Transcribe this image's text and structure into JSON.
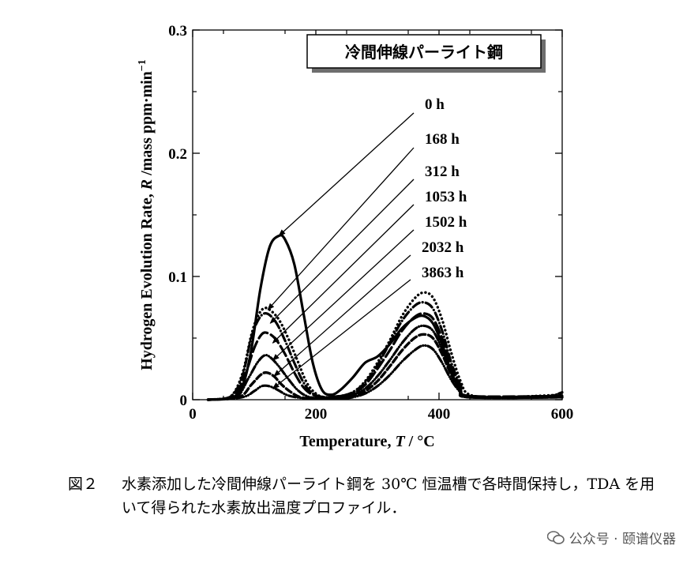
{
  "chart_data": {
    "type": "line",
    "title": "冷間伸線パーライト鋼",
    "xlabel_main": "Temperature,",
    "xlabel_var": "T",
    "xlabel_unit": " / °C",
    "ylabel_main": "Hydrogen Evolution Rate,",
    "ylabel_var": "R",
    "ylabel_unit": " /mass ppm·min",
    "ylabel_exp": "−1",
    "xlim": [
      0,
      600
    ],
    "ylim": [
      0,
      0.3
    ],
    "xticks": [
      0,
      200,
      400,
      600
    ],
    "xtick_labels": [
      "0",
      "200",
      "400",
      "600"
    ],
    "yticks": [
      0,
      0.1,
      0.2,
      0.3
    ],
    "ytick_labels": [
      "0",
      "0.1",
      "0.2",
      "0.3"
    ],
    "series": [
      {
        "name": "0 h",
        "style": "solid",
        "width": 3.2,
        "points": [
          [
            25,
            0
          ],
          [
            60,
            0.001
          ],
          [
            80,
            0.01
          ],
          [
            95,
            0.04
          ],
          [
            110,
            0.09
          ],
          [
            125,
            0.124
          ],
          [
            140,
            0.133
          ],
          [
            150,
            0.13
          ],
          [
            165,
            0.11
          ],
          [
            180,
            0.07
          ],
          [
            195,
            0.03
          ],
          [
            210,
            0.008
          ],
          [
            225,
            0.004
          ],
          [
            240,
            0.008
          ],
          [
            260,
            0.018
          ],
          [
            280,
            0.03
          ],
          [
            300,
            0.035
          ],
          [
            320,
            0.045
          ],
          [
            340,
            0.058
          ],
          [
            360,
            0.066
          ],
          [
            375,
            0.068
          ],
          [
            390,
            0.062
          ],
          [
            405,
            0.045
          ],
          [
            420,
            0.022
          ],
          [
            435,
            0.008
          ],
          [
            450,
            0.002
          ],
          [
            600,
            0.002
          ]
        ]
      },
      {
        "name": "168 h",
        "style": "dotted",
        "width": 3.4,
        "points": [
          [
            25,
            0
          ],
          [
            60,
            0.002
          ],
          [
            80,
            0.02
          ],
          [
            95,
            0.052
          ],
          [
            105,
            0.067
          ],
          [
            115,
            0.074
          ],
          [
            125,
            0.073
          ],
          [
            140,
            0.065
          ],
          [
            155,
            0.05
          ],
          [
            170,
            0.032
          ],
          [
            185,
            0.014
          ],
          [
            200,
            0.005
          ],
          [
            215,
            0.002
          ],
          [
            240,
            0.003
          ],
          [
            260,
            0.006
          ],
          [
            280,
            0.015
          ],
          [
            300,
            0.03
          ],
          [
            320,
            0.048
          ],
          [
            340,
            0.068
          ],
          [
            360,
            0.082
          ],
          [
            375,
            0.087
          ],
          [
            390,
            0.083
          ],
          [
            405,
            0.065
          ],
          [
            420,
            0.038
          ],
          [
            435,
            0.015
          ],
          [
            450,
            0.004
          ],
          [
            500,
            0.002
          ],
          [
            600,
            0.004
          ]
        ]
      },
      {
        "name": "312 h",
        "style": "dashdot",
        "width": 3.2,
        "points": [
          [
            25,
            0
          ],
          [
            60,
            0.002
          ],
          [
            80,
            0.018
          ],
          [
            95,
            0.05
          ],
          [
            108,
            0.066
          ],
          [
            120,
            0.07
          ],
          [
            135,
            0.063
          ],
          [
            150,
            0.048
          ],
          [
            165,
            0.03
          ],
          [
            180,
            0.014
          ],
          [
            195,
            0.005
          ],
          [
            215,
            0.002
          ],
          [
            240,
            0.003
          ],
          [
            260,
            0.006
          ],
          [
            280,
            0.014
          ],
          [
            300,
            0.028
          ],
          [
            320,
            0.046
          ],
          [
            340,
            0.064
          ],
          [
            360,
            0.076
          ],
          [
            375,
            0.079
          ],
          [
            390,
            0.074
          ],
          [
            405,
            0.056
          ],
          [
            420,
            0.03
          ],
          [
            435,
            0.012
          ],
          [
            450,
            0.003
          ],
          [
            600,
            0.003
          ]
        ]
      },
      {
        "name": "1053 h",
        "style": "longdash",
        "width": 3.2,
        "points": [
          [
            25,
            0
          ],
          [
            65,
            0.002
          ],
          [
            85,
            0.02
          ],
          [
            100,
            0.042
          ],
          [
            112,
            0.053
          ],
          [
            122,
            0.054
          ],
          [
            135,
            0.049
          ],
          [
            150,
            0.037
          ],
          [
            165,
            0.022
          ],
          [
            180,
            0.01
          ],
          [
            195,
            0.004
          ],
          [
            215,
            0.002
          ],
          [
            240,
            0.003
          ],
          [
            260,
            0.005
          ],
          [
            280,
            0.012
          ],
          [
            300,
            0.025
          ],
          [
            320,
            0.04
          ],
          [
            340,
            0.056
          ],
          [
            360,
            0.067
          ],
          [
            375,
            0.07
          ],
          [
            390,
            0.066
          ],
          [
            405,
            0.05
          ],
          [
            420,
            0.027
          ],
          [
            435,
            0.01
          ],
          [
            450,
            0.003
          ],
          [
            600,
            0.003
          ]
        ]
      },
      {
        "name": "1502 h",
        "style": "dashdotdot",
        "width": 3.2,
        "points": [
          [
            25,
            0
          ],
          [
            70,
            0.002
          ],
          [
            90,
            0.017
          ],
          [
            105,
            0.03
          ],
          [
            117,
            0.036
          ],
          [
            127,
            0.034
          ],
          [
            140,
            0.027
          ],
          [
            155,
            0.017
          ],
          [
            170,
            0.008
          ],
          [
            185,
            0.003
          ],
          [
            205,
            0.001
          ],
          [
            240,
            0.002
          ],
          [
            260,
            0.004
          ],
          [
            280,
            0.009
          ],
          [
            300,
            0.019
          ],
          [
            320,
            0.032
          ],
          [
            340,
            0.046
          ],
          [
            360,
            0.057
          ],
          [
            375,
            0.06
          ],
          [
            390,
            0.056
          ],
          [
            405,
            0.041
          ],
          [
            420,
            0.022
          ],
          [
            435,
            0.008
          ],
          [
            450,
            0.002
          ],
          [
            600,
            0.002
          ]
        ]
      },
      {
        "name": "2032 h",
        "style": "dash",
        "width": 3.4,
        "points": [
          [
            25,
            0
          ],
          [
            75,
            0.002
          ],
          [
            95,
            0.012
          ],
          [
            110,
            0.02
          ],
          [
            120,
            0.022
          ],
          [
            132,
            0.019
          ],
          [
            145,
            0.012
          ],
          [
            160,
            0.006
          ],
          [
            175,
            0.002
          ],
          [
            195,
            0.001
          ],
          [
            240,
            0.001
          ],
          [
            260,
            0.003
          ],
          [
            280,
            0.007
          ],
          [
            300,
            0.015
          ],
          [
            320,
            0.027
          ],
          [
            340,
            0.04
          ],
          [
            360,
            0.05
          ],
          [
            375,
            0.053
          ],
          [
            390,
            0.05
          ],
          [
            405,
            0.037
          ],
          [
            420,
            0.02
          ],
          [
            435,
            0.007
          ],
          [
            450,
            0.002
          ],
          [
            600,
            0.002
          ]
        ]
      },
      {
        "name": "3863 h",
        "style": "dashdotdot",
        "width": 3.2,
        "points": [
          [
            25,
            0
          ],
          [
            80,
            0.002
          ],
          [
            100,
            0.007
          ],
          [
            112,
            0.011
          ],
          [
            124,
            0.011
          ],
          [
            138,
            0.008
          ],
          [
            152,
            0.004
          ],
          [
            168,
            0.002
          ],
          [
            190,
            0.001
          ],
          [
            240,
            0.001
          ],
          [
            260,
            0.002
          ],
          [
            280,
            0.005
          ],
          [
            300,
            0.011
          ],
          [
            320,
            0.02
          ],
          [
            340,
            0.031
          ],
          [
            360,
            0.04
          ],
          [
            375,
            0.044
          ],
          [
            390,
            0.041
          ],
          [
            405,
            0.03
          ],
          [
            420,
            0.016
          ],
          [
            435,
            0.006
          ],
          [
            450,
            0.002
          ],
          [
            540,
            0.002
          ],
          [
            580,
            0.003
          ],
          [
            600,
            0.006
          ]
        ]
      }
    ],
    "annotations": [
      {
        "label": "0 h",
        "target": [
          140,
          0.133
        ]
      },
      {
        "label": "168 h",
        "target": [
          122,
          0.073
        ]
      },
      {
        "label": "312 h",
        "target": [
          126,
          0.062
        ]
      },
      {
        "label": "1053 h",
        "target": [
          130,
          0.046
        ]
      },
      {
        "label": "1502 h",
        "target": [
          130,
          0.032
        ]
      },
      {
        "label": "2032 h",
        "target": [
          132,
          0.019
        ]
      },
      {
        "label": "3863 h",
        "target": [
          130,
          0.009
        ]
      }
    ]
  },
  "caption": {
    "figure_number": "図２",
    "text": "水素添加した冷間伸線パーライト鋼を 30℃ 恒温槽で各時間保持し，TDA を用いて得られた水素放出温度プロファイル．"
  },
  "watermark": {
    "text": "公众号 · 颐谱仪器"
  }
}
